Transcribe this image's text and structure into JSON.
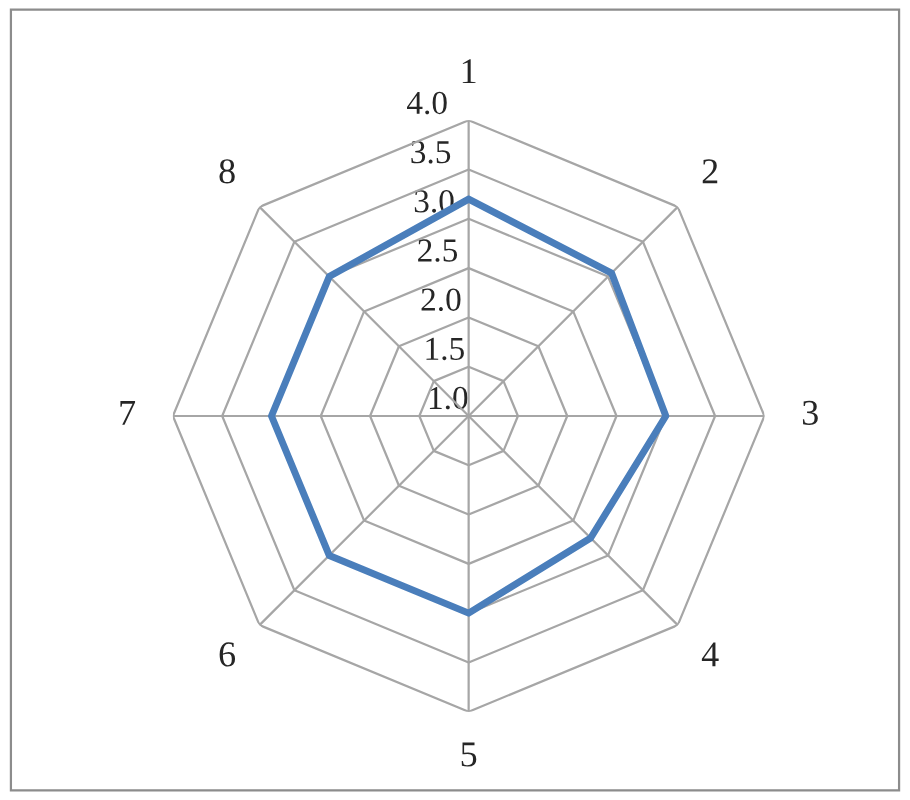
{
  "chart_data": {
    "type": "radar",
    "categories": [
      "1",
      "2",
      "3",
      "4",
      "5",
      "6",
      "7",
      "8"
    ],
    "series": [
      {
        "color": "#4a7ebb",
        "values": [
          3.2,
          3.05,
          3.0,
          2.75,
          3.0,
          3.0,
          3.0,
          3.0
        ]
      }
    ],
    "ylim": [
      1.0,
      4.0
    ],
    "yticks": [
      {
        "value": 1.0,
        "label": "1.0"
      },
      {
        "value": 1.5,
        "label": "1.5"
      },
      {
        "value": 2.0,
        "label": "2.0"
      },
      {
        "value": 2.5,
        "label": "2.5"
      },
      {
        "value": 3.0,
        "label": "3.0"
      },
      {
        "value": 3.5,
        "label": "3.5"
      },
      {
        "value": 4.0,
        "label": "4.0"
      }
    ],
    "grid": true,
    "marker": "none",
    "line_style": "solid"
  }
}
